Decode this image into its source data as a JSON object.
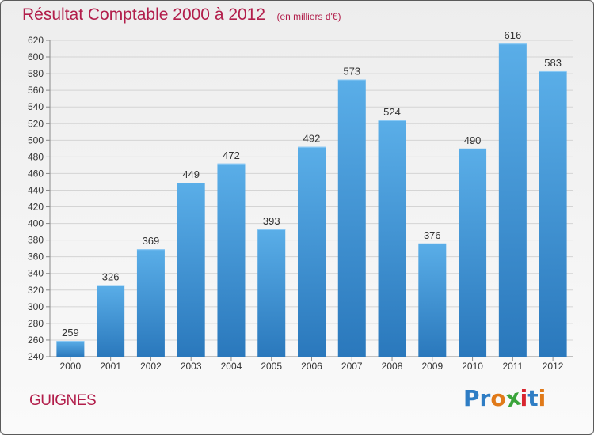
{
  "chart_data": {
    "type": "bar",
    "title": "Résultat Comptable 2000 à 2012",
    "subtitle": "(en milliers d'€)",
    "categories": [
      "2000",
      "2001",
      "2002",
      "2003",
      "2004",
      "2005",
      "2006",
      "2007",
      "2008",
      "2009",
      "2010",
      "2011",
      "2012"
    ],
    "values": [
      259,
      326,
      369,
      449,
      472,
      393,
      492,
      573,
      524,
      376,
      490,
      616,
      583
    ],
    "ylim": [
      240,
      620
    ],
    "yticks": [
      240,
      260,
      280,
      300,
      320,
      340,
      360,
      380,
      400,
      420,
      440,
      460,
      480,
      500,
      520,
      540,
      560,
      580,
      600,
      620
    ],
    "grid": true,
    "colors": {
      "bar_top": "#5aaee8",
      "bar_bottom": "#2a78bc",
      "text": "#333333",
      "accent": "#b21e4b"
    }
  },
  "footer": {
    "town": "GUIGNES",
    "logo_letters": [
      {
        "char": "P",
        "color": "#2f7dc4"
      },
      {
        "char": "r",
        "color": "#2f7dc4"
      },
      {
        "char": "o",
        "color": "#e07a1a"
      },
      {
        "char": "x",
        "color": "#3aa43a"
      },
      {
        "char": "i",
        "color": "#d8262f"
      },
      {
        "char": "t",
        "color": "#2f7dc4"
      },
      {
        "char": "i",
        "color": "#e07a1a"
      }
    ]
  }
}
